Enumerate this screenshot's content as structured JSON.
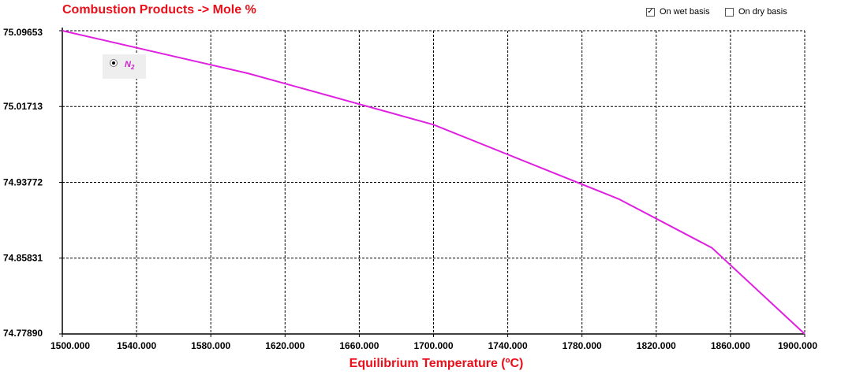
{
  "options": {
    "wet_basis": {
      "label": "On wet basis",
      "checked": true
    },
    "dry_basis": {
      "label": "On dry basis",
      "checked": false
    }
  },
  "chart_data": {
    "type": "line",
    "title": "Combustion Products -> Mole %",
    "xlabel": "Equilibrium Temperature (ºC)",
    "ylabel": "",
    "xlim": [
      1500,
      1900
    ],
    "ylim": [
      74.7789,
      75.09653
    ],
    "x_ticks": [
      "1500.000",
      "1540.000",
      "1580.000",
      "1620.000",
      "1660.000",
      "1700.000",
      "1740.000",
      "1780.000",
      "1820.000",
      "1860.000",
      "1900.000"
    ],
    "y_ticks": [
      "75.09653",
      "75.01713",
      "74.93772",
      "74.85831",
      "74.77890"
    ],
    "grid": true,
    "legend_placement": "top-left",
    "series": [
      {
        "name": "N2",
        "color": "#e020e0",
        "x": [
          1500,
          1600,
          1700,
          1800,
          1850,
          1900
        ],
        "y": [
          75.09653,
          75.0519,
          74.9981,
          74.9201,
          74.8691,
          74.7789
        ]
      }
    ]
  }
}
